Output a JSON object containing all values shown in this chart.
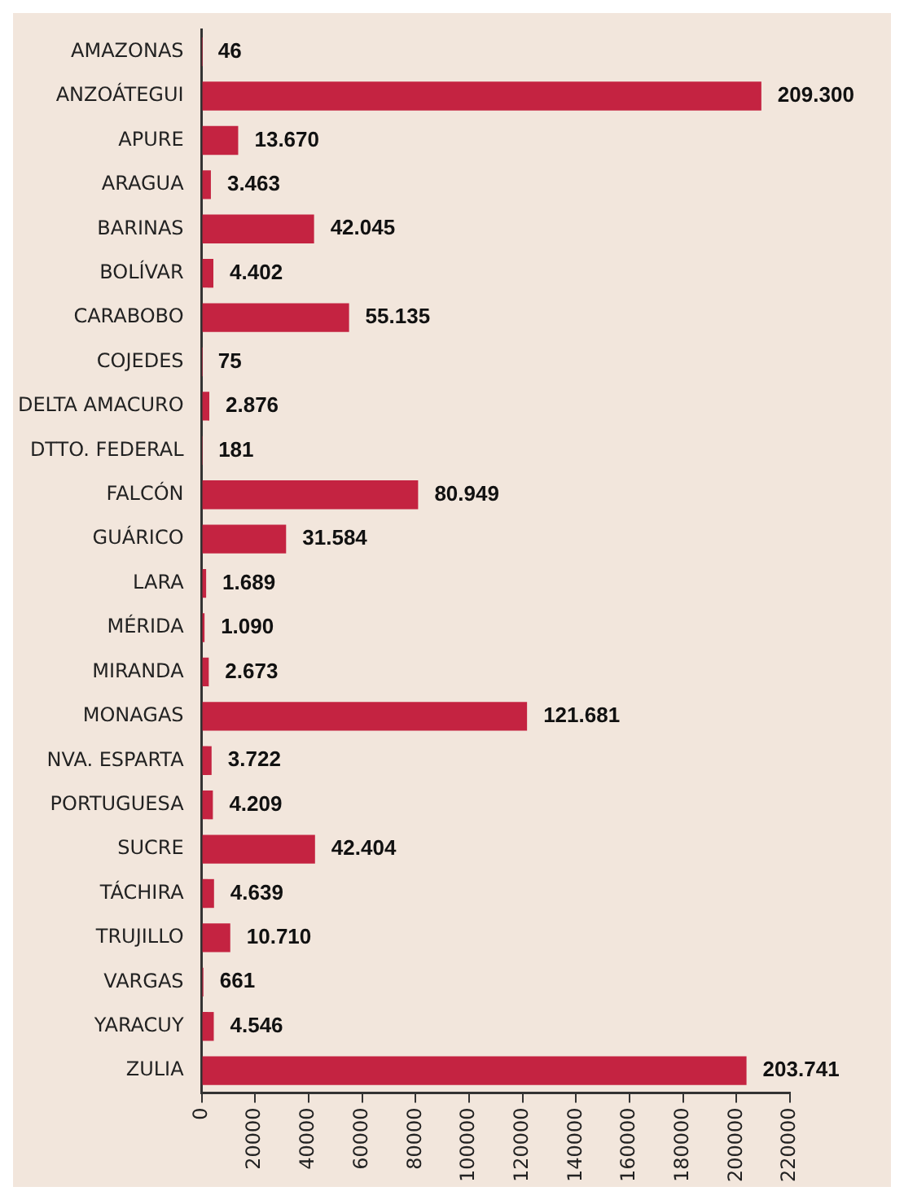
{
  "chart_data": {
    "type": "bar",
    "orientation": "horizontal",
    "categories": [
      "AMAZONAS",
      "ANZOÁTEGUI",
      "APURE",
      "ARAGUA",
      "BARINAS",
      "BOLÍVAR",
      "CARABOBO",
      "COJEDES",
      "DELTA AMACURO",
      "DTTO. FEDERAL",
      "FALCÓN",
      "GUÁRICO",
      "LARA",
      "MÉRIDA",
      "MIRANDA",
      "MONAGAS",
      "NVA. ESPARTA",
      "PORTUGUESA",
      "SUCRE",
      "TÁCHIRA",
      "TRUJILLO",
      "VARGAS",
      "YARACUY",
      "ZULIA"
    ],
    "values": [
      46,
      209300,
      13670,
      3463,
      42045,
      4402,
      55135,
      75,
      2876,
      181,
      80949,
      31584,
      1689,
      1090,
      2673,
      121681,
      3722,
      4209,
      42404,
      4639,
      10710,
      661,
      4546,
      203741
    ],
    "value_labels": [
      "46",
      "209.300",
      "13.670",
      "3.463",
      "42.045",
      "4.402",
      "55.135",
      "75",
      "2.876",
      "181",
      "80.949",
      "31.584",
      "1.689",
      "1.090",
      "2.673",
      "121.681",
      "3.722",
      "4.209",
      "42.404",
      "4.639",
      "10.710",
      "661",
      "4.546",
      "203.741"
    ],
    "color": "#c42341",
    "xlim": [
      0,
      220000
    ],
    "xticks": [
      0,
      20000,
      40000,
      60000,
      80000,
      100000,
      120000,
      140000,
      160000,
      180000,
      200000,
      220000
    ],
    "grid": false,
    "legend": false
  }
}
